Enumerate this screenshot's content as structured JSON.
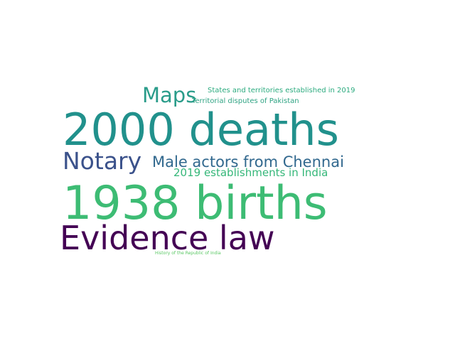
{
  "words": [
    {
      "text": "2000 deaths",
      "color": "#21918c"
    },
    {
      "text": "1938 births",
      "color": "#3dbc74"
    },
    {
      "text": "Evidence law",
      "color": "#440154"
    },
    {
      "text": "Notary",
      "color": "#3b528b"
    },
    {
      "text": "Male actors from Chennai",
      "color": "#31688e"
    },
    {
      "text": "2019 establishments in India",
      "color": "#35b779"
    },
    {
      "text": "Maps",
      "color": "#2a9c8a"
    },
    {
      "text": "States and territories established in 2019",
      "color": "#2cab7f"
    },
    {
      "text": "Territorial disputes of Pakistan",
      "color": "#2fa383"
    },
    {
      "text": "History of the Republic of India",
      "color": "#5ac864"
    }
  ]
}
